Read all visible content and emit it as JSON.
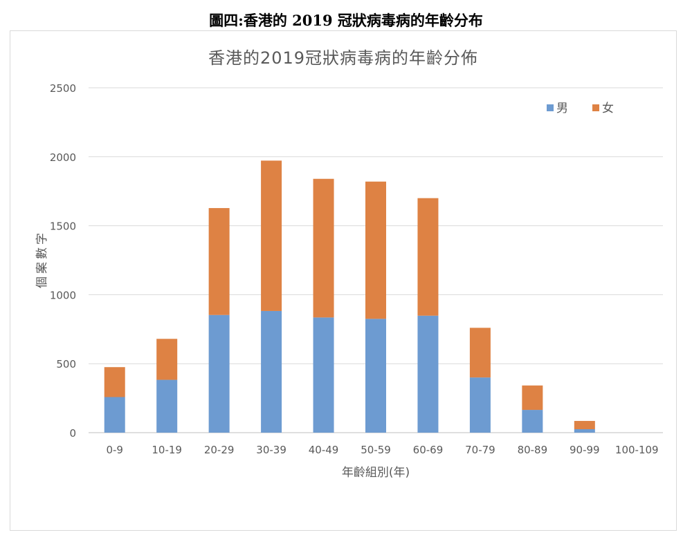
{
  "caption": "圖四:香港的 2019 冠狀病毒病的年齡分布",
  "chart_data": {
    "type": "bar",
    "stacked": true,
    "title": "香港的2019冠狀病毒病的年齡分佈",
    "xlabel": "年齡組別(年)",
    "ylabel": "個案數字",
    "ylim": [
      0,
      2500
    ],
    "yticks": [
      0,
      500,
      1000,
      1500,
      2000,
      2500
    ],
    "grid": true,
    "legend_position": "top-right",
    "categories": [
      "0-9",
      "10-19",
      "20-29",
      "30-39",
      "40-49",
      "50-59",
      "60-69",
      "70-79",
      "80-89",
      "90-99",
      "100-109"
    ],
    "series": [
      {
        "name": "男",
        "color": "#6d9bd1",
        "values": [
          258,
          383,
          853,
          882,
          835,
          825,
          848,
          400,
          165,
          25,
          0
        ]
      },
      {
        "name": "女",
        "color": "#de8244",
        "values": [
          217,
          297,
          775,
          1090,
          1005,
          995,
          852,
          360,
          177,
          60,
          0
        ]
      }
    ]
  }
}
